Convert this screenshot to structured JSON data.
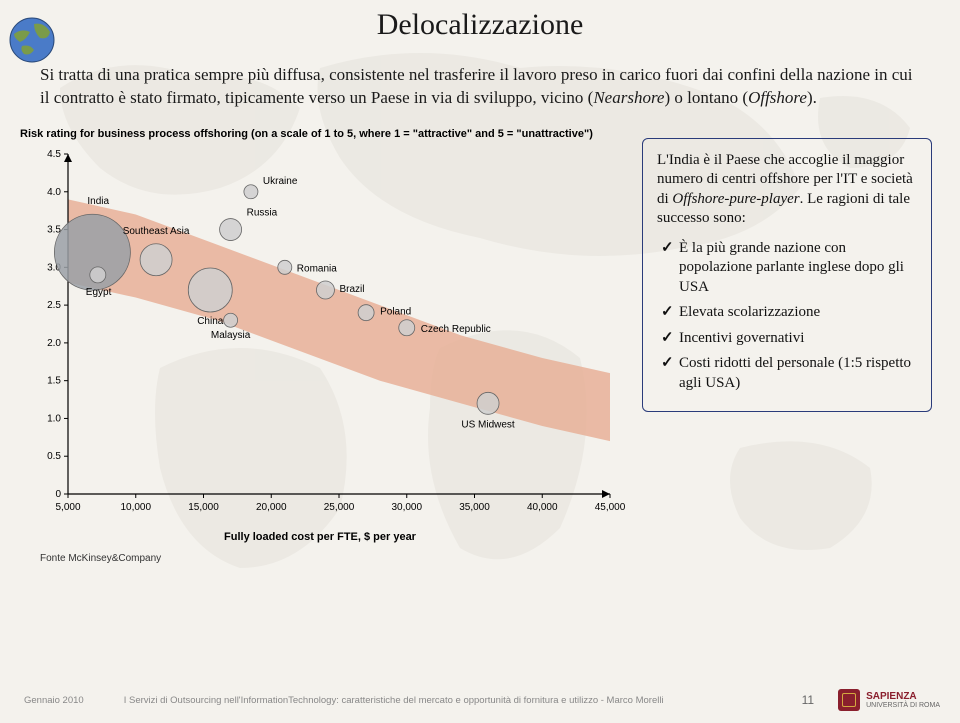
{
  "title": "Delocalizzazione",
  "intro": "Si tratta di una pratica sempre più diffusa, consistente nel trasferire il lavoro preso in carico fuori dai confini della nazione in cui il contratto è stato firmato, tipicamente verso un Paese in via di sviluppo, vicino (",
  "intro_i1": "Nearshore",
  "intro_mid": ") o lontano (",
  "intro_i2": "Offshore",
  "intro_end": ").",
  "chart": {
    "header": "Risk rating for business process offshoring (on a scale of 1 to 5, where 1 = \"attractive\" and 5 = \"unattractive\")",
    "footer": "Fully loaded cost per FTE, $ per year",
    "band_color": "#e8b098",
    "background": "#f4f2ed",
    "axis_color": "#000000",
    "tick_font": 10,
    "label_font": 10,
    "y_ticks": [
      "0",
      "0.5",
      "1.0",
      "1.5",
      "2.0",
      "2.5",
      "3.0",
      "3.5",
      "4.0",
      "4.5"
    ],
    "x_ticks": [
      "5,000",
      "10,000",
      "15,000",
      "20,000",
      "25,000",
      "30,000",
      "35,000",
      "40,000",
      "45,000"
    ],
    "x_min": 5000,
    "x_max": 45000,
    "y_min": 0,
    "y_max": 4.5,
    "bubbles": [
      {
        "name": "India",
        "x": 6800,
        "y": 3.2,
        "r": 38,
        "fill": "#9aa0a6"
      },
      {
        "name": "Egypt",
        "x": 7200,
        "y": 2.9,
        "r": 8,
        "fill": "#cfcfcf"
      },
      {
        "name": "Southeast Asia",
        "x": 11500,
        "y": 3.1,
        "r": 16,
        "fill": "#cfcfcf"
      },
      {
        "name": "China",
        "x": 15500,
        "y": 2.7,
        "r": 22,
        "fill": "#cfcfcf"
      },
      {
        "name": "Russia",
        "x": 17000,
        "y": 3.5,
        "r": 11,
        "fill": "#cfcfcf"
      },
      {
        "name": "Malaysia",
        "x": 17000,
        "y": 2.3,
        "r": 7,
        "fill": "#cfcfcf"
      },
      {
        "name": "Ukraine",
        "x": 18500,
        "y": 4.0,
        "r": 7,
        "fill": "#cfcfcf"
      },
      {
        "name": "Romania",
        "x": 21000,
        "y": 3.0,
        "r": 7,
        "fill": "#cfcfcf"
      },
      {
        "name": "Brazil",
        "x": 24000,
        "y": 2.7,
        "r": 9,
        "fill": "#cfcfcf"
      },
      {
        "name": "Poland",
        "x": 27000,
        "y": 2.4,
        "r": 8,
        "fill": "#cfcfcf"
      },
      {
        "name": "Czech Republic",
        "x": 30000,
        "y": 2.2,
        "r": 8,
        "fill": "#cfcfcf"
      },
      {
        "name": "US Midwest",
        "x": 36000,
        "y": 1.2,
        "r": 11,
        "fill": "#cfcfcf"
      }
    ],
    "label_positions": {
      "India": {
        "dx": -5,
        "dy": -48,
        "anchor": "start"
      },
      "Egypt": {
        "dx": -12,
        "dy": 20,
        "anchor": "start"
      },
      "Southeast Asia": {
        "dx": 0,
        "dy": -26,
        "anchor": "middle"
      },
      "China": {
        "dx": 0,
        "dy": 34,
        "anchor": "middle"
      },
      "Russia": {
        "dx": 16,
        "dy": -14,
        "anchor": "start"
      },
      "Malaysia": {
        "dx": 0,
        "dy": 18,
        "anchor": "middle"
      },
      "Ukraine": {
        "dx": 12,
        "dy": -8,
        "anchor": "start"
      },
      "Romania": {
        "dx": 12,
        "dy": 4,
        "anchor": "start"
      },
      "Brazil": {
        "dx": 14,
        "dy": 2,
        "anchor": "start"
      },
      "Poland": {
        "dx": 14,
        "dy": 2,
        "anchor": "start"
      },
      "Czech Republic": {
        "dx": 14,
        "dy": 4,
        "anchor": "start"
      },
      "US Midwest": {
        "dx": 0,
        "dy": 24,
        "anchor": "middle"
      }
    }
  },
  "source": "Fonte McKinsey&Company",
  "callout": {
    "para_pre": "L'India è il Paese che accoglie il maggior numero di centri offshore per l'IT e società di ",
    "para_it": "Offshore-pure-player",
    "para_post": ". Le ragioni di tale successo sono:",
    "items": [
      "È la più grande nazione con popolazione parlante inglese dopo gli USA",
      "Elevata scolarizzazione",
      "Incentivi governativi",
      "Costi ridotti del personale (1:5 rispetto agli USA)"
    ]
  },
  "footer": {
    "date": "Gennaio 2010",
    "title": "I Servizi di Outsourcing nell'InformationTechnology: caratteristiche del mercato e opportunità di fornitura e utilizzo - Marco Morelli",
    "page": "11",
    "brand": "SAPIENZA",
    "brand_sub": "UNIVERSITÀ DI ROMA"
  }
}
